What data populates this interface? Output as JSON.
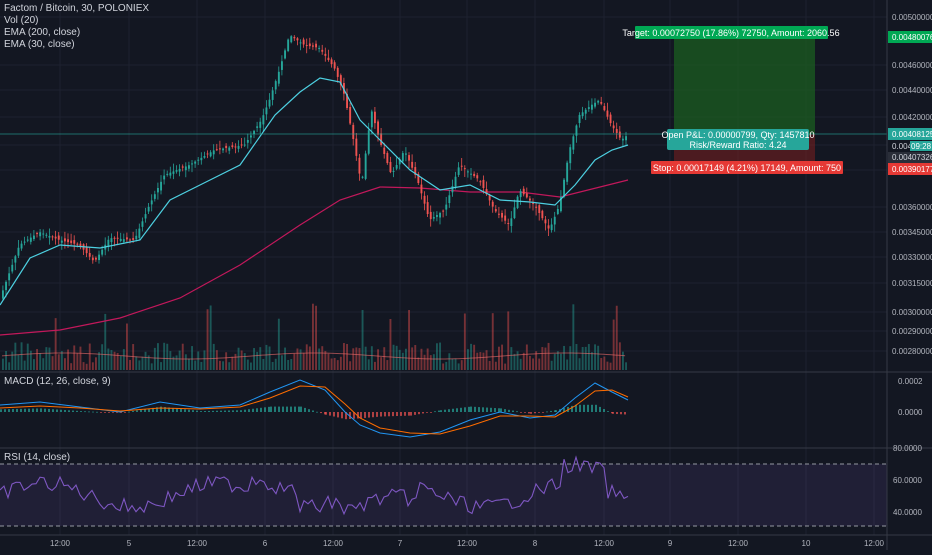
{
  "legend": {
    "symbol_line": "Factom / Bitcoin, 30, POLONIEX",
    "vol": "Vol (20)",
    "ema200": "EMA (200, close)",
    "ema30": "EMA (30, close)"
  },
  "panes": {
    "macd_label": "MACD (12, 26, close, 9)",
    "rsi_label": "RSI (14, close)"
  },
  "price_axis": {
    "ticks": [
      "0.00500000",
      "0.00460000",
      "0.00440000",
      "0.00420000",
      "0.00390000",
      "0.00360000",
      "0.00345000",
      "0.00330000",
      "0.00315000",
      "0.00300000",
      "0.00290000",
      "0.00280000"
    ],
    "target_level": "0.00480076",
    "current_price": "0.00408125",
    "countdown_label": "0.0040",
    "countdown": "09:28",
    "entry_level": "0.00407326",
    "stop_level": "0.00390177"
  },
  "macd_axis": {
    "ticks": [
      "0.0002",
      "0.0000"
    ]
  },
  "rsi_axis": {
    "ticks": [
      "80.0000",
      "60.0000",
      "40.0000"
    ]
  },
  "time_axis": {
    "labels": [
      "12:00",
      "5",
      "12:00",
      "6",
      "12:00",
      "7",
      "12:00",
      "8",
      "12:00",
      "9",
      "12:00",
      "10",
      "12:00"
    ]
  },
  "position": {
    "target": "Target: 0.00072750 (17.86%) 72750, Amount: 2060.56",
    "open_pl": "Open P&L: 0.00000799, Qty: 1457810",
    "risk_reward": "Risk/Reward Ratio: 4.24",
    "stop": "Stop: 0.00017149 (4.21%) 17149, Amount: 750"
  },
  "colors": {
    "background": "#131722",
    "up": "#26a69a",
    "down": "#ef5350",
    "ema200": "#c2185b",
    "ema30": "#4dd0e1",
    "macd": "#2196f3",
    "signal": "#ff6d00",
    "rsi": "#7e57c2",
    "target_zone": "#1b5e20",
    "stop_zone": "#e53935"
  },
  "chart_data": {
    "type": "candlestick",
    "timeframe": "30",
    "x_labels": [
      "12:00",
      "5",
      "12:00",
      "6",
      "12:00",
      "7",
      "12:00",
      "8",
      "12:00",
      "9",
      "12:00",
      "10",
      "12:00"
    ],
    "price_range": [
      0.0027,
      0.0051
    ],
    "ema200_approx": [
      0.00302,
      0.00304,
      0.00307,
      0.00311,
      0.00316,
      0.00322,
      0.00329,
      0.00337,
      0.00346,
      0.00354,
      0.00361,
      0.00364,
      0.00364,
      0.00365,
      0.00367,
      0.0037,
      0.00373,
      0.00375,
      0.00379,
      0.00383
    ],
    "ema30_approx": [
      0.0031,
      0.00332,
      0.00345,
      0.00344,
      0.00352,
      0.0037,
      0.0038,
      0.00395,
      0.00438,
      0.00464,
      0.00455,
      0.00418,
      0.00396,
      0.00382,
      0.00375,
      0.00367,
      0.00362,
      0.0037,
      0.00393,
      0.00405
    ],
    "macd_range": [
      -0.00015,
      0.00025
    ],
    "rsi_range": [
      25,
      80
    ],
    "rsi_levels": [
      70,
      30
    ]
  }
}
